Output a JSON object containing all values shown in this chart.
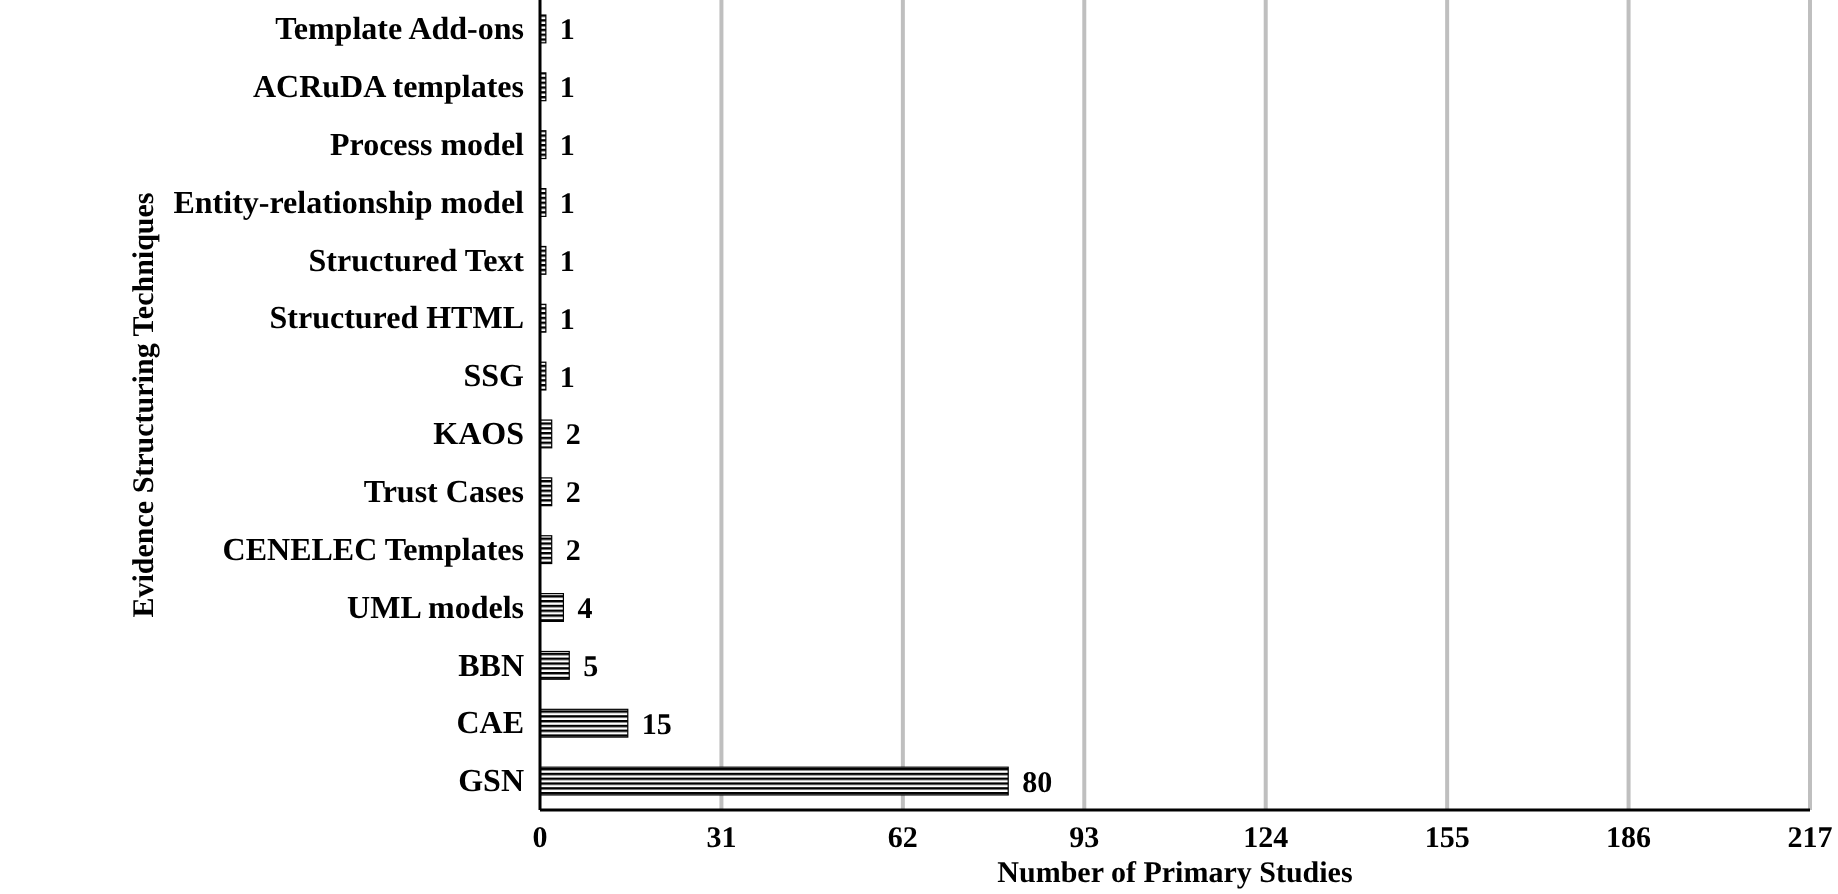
{
  "chart_data": {
    "type": "bar",
    "orientation": "horizontal",
    "categories": [
      "Template Add-ons",
      "ACRuDA templates",
      "Process model",
      "Entity-relationship model",
      "Structured Text",
      "Structured HTML",
      "SSG",
      "KAOS",
      "Trust Cases",
      "CENELEC Templates",
      "UML models",
      "BBN",
      "CAE",
      "GSN"
    ],
    "values": [
      1,
      1,
      1,
      1,
      1,
      1,
      1,
      2,
      2,
      2,
      4,
      5,
      15,
      80
    ],
    "color": "#000000",
    "xlim": [
      0,
      217
    ],
    "xticks": [
      0,
      31,
      62,
      93,
      124,
      155,
      186,
      217
    ],
    "xlabel": "Number of Primary Studies",
    "ylabel": "Evidence Structuring Techniques",
    "data_labels": true,
    "grid": "x"
  }
}
